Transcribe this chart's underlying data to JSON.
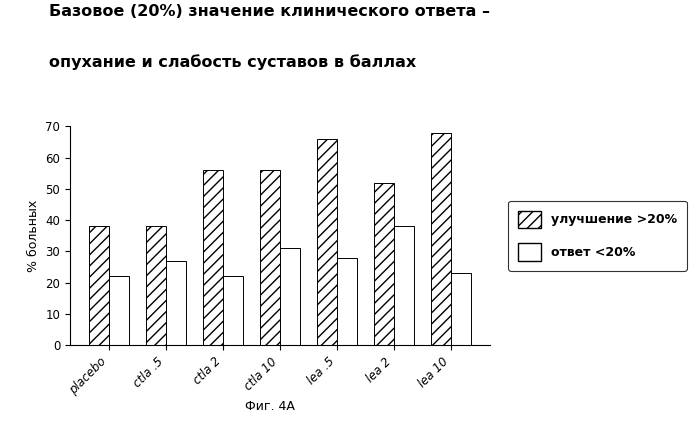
{
  "title_line1": "Базовое (20%) значение клинического ответа –",
  "title_line2": "опухание и слабость суставов в баллах",
  "categories": [
    "placebo",
    "ctla .5",
    "ctla 2",
    "ctla 10",
    "lea .5",
    "lea 2",
    "lea 10"
  ],
  "improvement_values": [
    38,
    38,
    56,
    56,
    66,
    52,
    68
  ],
  "response_values": [
    22,
    27,
    22,
    31,
    28,
    38,
    23
  ],
  "ylabel": "% больных",
  "xlabel": "Фиг. 4А",
  "ylim": [
    0,
    70
  ],
  "yticks": [
    0,
    10,
    20,
    30,
    40,
    50,
    60,
    70
  ],
  "legend_improvement": "улучшение >20%",
  "legend_response": "ответ <20%",
  "bar_width": 0.35,
  "hatch_improvement": "///",
  "hatch_response": "",
  "facecolor_improvement": "white",
  "facecolor_response": "white",
  "edgecolor": "black",
  "background_color": "white",
  "title_fontsize": 11.5,
  "axis_fontsize": 9,
  "tick_fontsize": 8.5,
  "legend_fontsize": 9
}
